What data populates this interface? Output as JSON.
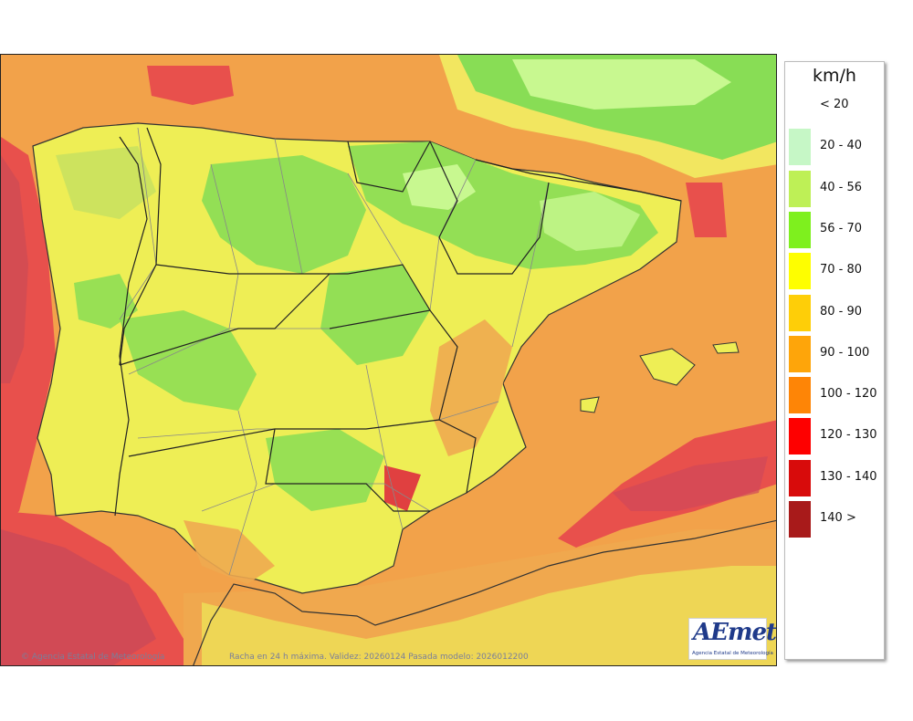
{
  "map": {
    "credit_left": "© Agencia Estatal de Meteorología",
    "credit_center": "Racha en 24 h máxima. Validez: 20260124 Pasada modelo: 2026012200",
    "logo": {
      "mark": "AEmet",
      "subtitle": "Agencia Estatal de Meteorología"
    },
    "colors": {
      "sea_base": "#f2a24a",
      "land_base": "#eeee55",
      "atlantic_strong": "#e8504c",
      "north_green": "#88dd55",
      "light_green": "#c8f890"
    }
  },
  "legend": {
    "unit": "km/h",
    "entries": [
      {
        "label": "< 20",
        "color": "#ffffff"
      },
      {
        "label": "20 - 40",
        "color": "#c6f7c6"
      },
      {
        "label": "40 - 56",
        "color": "#bef056"
      },
      {
        "label": "56 - 70",
        "color": "#7ef01e"
      },
      {
        "label": "70 - 80",
        "color": "#fefe00"
      },
      {
        "label": "80 - 90",
        "color": "#fece08"
      },
      {
        "label": "90 - 100",
        "color": "#fea50a"
      },
      {
        "label": "100 - 120",
        "color": "#fe8506"
      },
      {
        "label": "120 - 130",
        "color": "#fe0000"
      },
      {
        "label": "130 - 140",
        "color": "#d80b0b"
      },
      {
        "label": "140 >",
        "color": "#a81a1a"
      }
    ]
  }
}
